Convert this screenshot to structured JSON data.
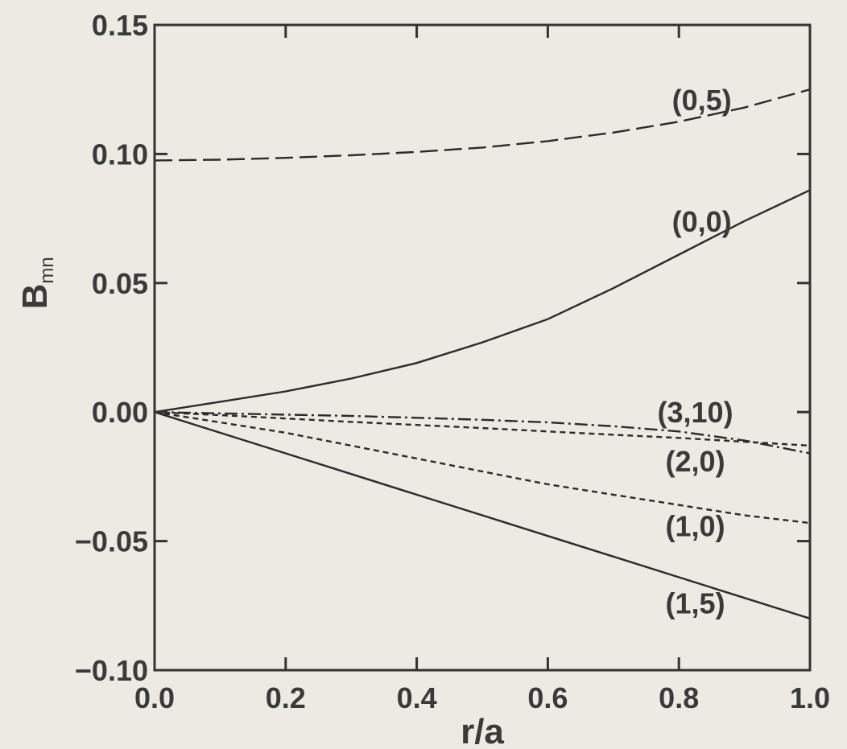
{
  "chart_data": {
    "type": "line",
    "title": "",
    "xlabel": "r/a",
    "ylabel": "B",
    "ylabel_subscript": "mn",
    "xlim": [
      0.0,
      1.0
    ],
    "ylim": [
      -0.1,
      0.15
    ],
    "xticks": [
      0.0,
      0.2,
      0.4,
      0.6,
      0.8,
      1.0
    ],
    "xtick_labels": [
      "0.0",
      "0.2",
      "0.4",
      "0.6",
      "0.8",
      "1.0"
    ],
    "yticks": [
      -0.1,
      -0.05,
      0.0,
      0.05,
      0.1,
      0.15
    ],
    "ytick_labels": [
      "−0.10",
      "−0.05",
      "0.00",
      "0.05",
      "0.10",
      "0.15"
    ],
    "grid": false,
    "x": [
      0.0,
      0.1,
      0.2,
      0.3,
      0.4,
      0.5,
      0.6,
      0.7,
      0.8,
      0.9,
      1.0
    ],
    "series": [
      {
        "name": "(0,5)",
        "style": "long-dash",
        "values": [
          0.0975,
          0.0978,
          0.0985,
          0.0995,
          0.1008,
          0.1025,
          0.105,
          0.1083,
          0.1125,
          0.118,
          0.125
        ]
      },
      {
        "name": "(0,0)",
        "style": "solid",
        "values": [
          0.0,
          0.004,
          0.008,
          0.013,
          0.019,
          0.027,
          0.036,
          0.048,
          0.061,
          0.074,
          0.086
        ]
      },
      {
        "name": "(3,10)",
        "style": "dash-dot",
        "values": [
          0.0,
          -0.0005,
          -0.001,
          -0.0015,
          -0.0022,
          -0.003,
          -0.004,
          -0.0055,
          -0.0075,
          -0.011,
          -0.016
        ]
      },
      {
        "name": "(2,0)",
        "style": "short-dash",
        "values": [
          0.0,
          -0.0012,
          -0.0025,
          -0.0038,
          -0.005,
          -0.0062,
          -0.0075,
          -0.0088,
          -0.01,
          -0.0115,
          -0.013
        ]
      },
      {
        "name": "(1,0)",
        "style": "short-dash",
        "values": [
          0.0,
          -0.004,
          -0.008,
          -0.013,
          -0.018,
          -0.023,
          -0.028,
          -0.032,
          -0.036,
          -0.04,
          -0.043
        ]
      },
      {
        "name": "(1,5)",
        "style": "solid",
        "values": [
          0.0,
          -0.008,
          -0.016,
          -0.024,
          -0.032,
          -0.04,
          -0.048,
          -0.056,
          -0.064,
          -0.072,
          -0.08
        ]
      }
    ]
  }
}
